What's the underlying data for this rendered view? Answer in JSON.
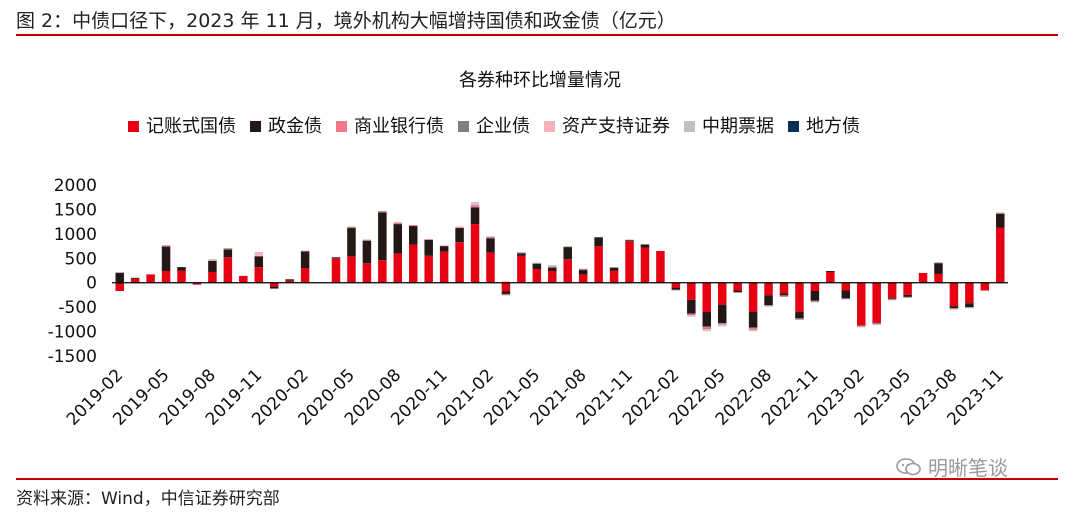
{
  "figure_title": "图 2：中债口径下，2023 年 11 月，境外机构大幅增持国债和政金债（亿元）",
  "source_note": "资料来源：Wind，中信证券研究部",
  "watermark": "明晰笔谈",
  "colors": {
    "rule": "#c00000",
    "zero_line": "#000000"
  },
  "chart_data": {
    "type": "bar",
    "stacked": true,
    "title": "各券种环比增量情况",
    "legend_position": "top",
    "grid": false,
    "ylim": [
      -1500,
      2000
    ],
    "yticks": [
      -1500,
      -1000,
      -500,
      0,
      500,
      1000,
      1500,
      2000
    ],
    "ytick_labels": [
      "-1500",
      "-1000",
      "-500",
      "0",
      "500",
      "1000",
      "1500",
      "2000"
    ],
    "xtick_labels": [
      "2019-02",
      "2019-05",
      "2019-08",
      "2019-11",
      "2020-02",
      "2020-05",
      "2020-08",
      "2020-11",
      "2021-02",
      "2021-05",
      "2021-08",
      "2021-11",
      "2022-02",
      "2022-05",
      "2022-08",
      "2022-11",
      "2023-02",
      "2023-05",
      "2023-08",
      "2023-11"
    ],
    "categories": [
      "2019-02",
      "2019-03",
      "2019-04",
      "2019-05",
      "2019-06",
      "2019-07",
      "2019-08",
      "2019-09",
      "2019-10",
      "2019-11",
      "2019-12",
      "2020-01",
      "2020-02",
      "2020-03",
      "2020-04",
      "2020-05",
      "2020-06",
      "2020-07",
      "2020-08",
      "2020-09",
      "2020-10",
      "2020-11",
      "2020-12",
      "2021-01",
      "2021-02",
      "2021-03",
      "2021-04",
      "2021-05",
      "2021-06",
      "2021-07",
      "2021-08",
      "2021-09",
      "2021-10",
      "2021-11",
      "2021-12",
      "2022-01",
      "2022-02",
      "2022-03",
      "2022-04",
      "2022-05",
      "2022-06",
      "2022-07",
      "2022-08",
      "2022-09",
      "2022-10",
      "2022-11",
      "2022-12",
      "2023-01",
      "2023-02",
      "2023-03",
      "2023-04",
      "2023-05",
      "2023-06",
      "2023-07",
      "2023-08",
      "2023-09",
      "2023-10",
      "2023-11"
    ],
    "series": [
      {
        "name": "记账式国债",
        "color": "#e60012",
        "values": [
          -170,
          80,
          170,
          240,
          250,
          -40,
          220,
          520,
          140,
          320,
          -80,
          40,
          300,
          0,
          500,
          540,
          400,
          460,
          600,
          780,
          550,
          640,
          830,
          1200,
          620,
          -180,
          550,
          280,
          240,
          480,
          170,
          750,
          250,
          850,
          720,
          650,
          -100,
          -350,
          -600,
          -450,
          -160,
          -600,
          -260,
          -220,
          -600,
          -170,
          220,
          -160,
          -880,
          -820,
          -310,
          -250,
          200,
          180,
          -480,
          -420,
          -160,
          1130
        ]
      },
      {
        "name": "政金债",
        "color": "#231815",
        "values": [
          200,
          20,
          0,
          500,
          70,
          0,
          230,
          160,
          0,
          220,
          -40,
          30,
          340,
          0,
          20,
          580,
          460,
          980,
          600,
          380,
          330,
          110,
          290,
          340,
          290,
          -50,
          50,
          110,
          70,
          250,
          90,
          180,
          60,
          20,
          60,
          0,
          -40,
          -280,
          -300,
          -380,
          -30,
          -320,
          -200,
          -40,
          -130,
          -200,
          20,
          -160,
          0,
          -10,
          -20,
          -40,
          0,
          220,
          -40,
          -80,
          0,
          280
        ]
      },
      {
        "name": "商业银行债",
        "color": "#f4798a",
        "values": [
          0,
          0,
          0,
          10,
          0,
          0,
          0,
          10,
          0,
          10,
          0,
          0,
          10,
          0,
          0,
          10,
          10,
          10,
          30,
          20,
          10,
          10,
          10,
          30,
          20,
          -10,
          10,
          0,
          10,
          0,
          10,
          0,
          0,
          0,
          0,
          0,
          0,
          -20,
          -30,
          -20,
          0,
          -20,
          -10,
          -10,
          -10,
          -10,
          0,
          0,
          -10,
          -10,
          -10,
          0,
          0,
          0,
          -10,
          0,
          0,
          10
        ]
      },
      {
        "name": "企业债",
        "color": "#7f7f7f",
        "values": [
          10,
          0,
          0,
          10,
          0,
          0,
          0,
          10,
          0,
          0,
          0,
          0,
          0,
          0,
          0,
          10,
          10,
          10,
          0,
          0,
          0,
          0,
          0,
          10,
          10,
          -10,
          10,
          10,
          10,
          10,
          10,
          0,
          -10,
          10,
          10,
          0,
          -10,
          -10,
          -20,
          -10,
          -10,
          -20,
          -10,
          -10,
          -10,
          -10,
          0,
          -10,
          -10,
          -10,
          -10,
          -10,
          0,
          10,
          -10,
          -10,
          0,
          10
        ]
      },
      {
        "name": "资产支持证券",
        "color": "#f7b3bd",
        "values": [
          0,
          0,
          0,
          0,
          0,
          0,
          20,
          0,
          0,
          70,
          0,
          0,
          0,
          0,
          0,
          0,
          0,
          0,
          0,
          0,
          0,
          0,
          20,
          60,
          0,
          30,
          0,
          0,
          20,
          0,
          0,
          0,
          0,
          0,
          0,
          0,
          0,
          -20,
          -30,
          -20,
          0,
          -20,
          0,
          0,
          0,
          0,
          0,
          0,
          0,
          0,
          0,
          0,
          0,
          0,
          0,
          0,
          0,
          0
        ]
      },
      {
        "name": "中期票据",
        "color": "#bfbfbf",
        "values": [
          0,
          0,
          0,
          10,
          0,
          0,
          10,
          10,
          0,
          10,
          0,
          0,
          10,
          0,
          0,
          10,
          -10,
          10,
          10,
          0,
          0,
          0,
          0,
          10,
          10,
          -10,
          0,
          10,
          10,
          0,
          10,
          -10,
          -20,
          -10,
          -10,
          0,
          -10,
          -10,
          -10,
          -10,
          -10,
          -10,
          -10,
          -10,
          -10,
          -10,
          0,
          -10,
          -10,
          -10,
          -10,
          -10,
          0,
          10,
          -10,
          -10,
          0,
          10
        ]
      },
      {
        "name": "地方债",
        "color": "#0c2f5a",
        "values": [
          0,
          0,
          0,
          0,
          0,
          0,
          0,
          0,
          0,
          0,
          0,
          0,
          0,
          0,
          0,
          0,
          0,
          0,
          0,
          0,
          0,
          0,
          0,
          0,
          0,
          0,
          0,
          0,
          0,
          0,
          0,
          0,
          0,
          0,
          0,
          0,
          0,
          0,
          0,
          0,
          0,
          0,
          0,
          0,
          0,
          0,
          0,
          0,
          0,
          0,
          0,
          0,
          0,
          0,
          0,
          0,
          0,
          0
        ]
      }
    ]
  }
}
